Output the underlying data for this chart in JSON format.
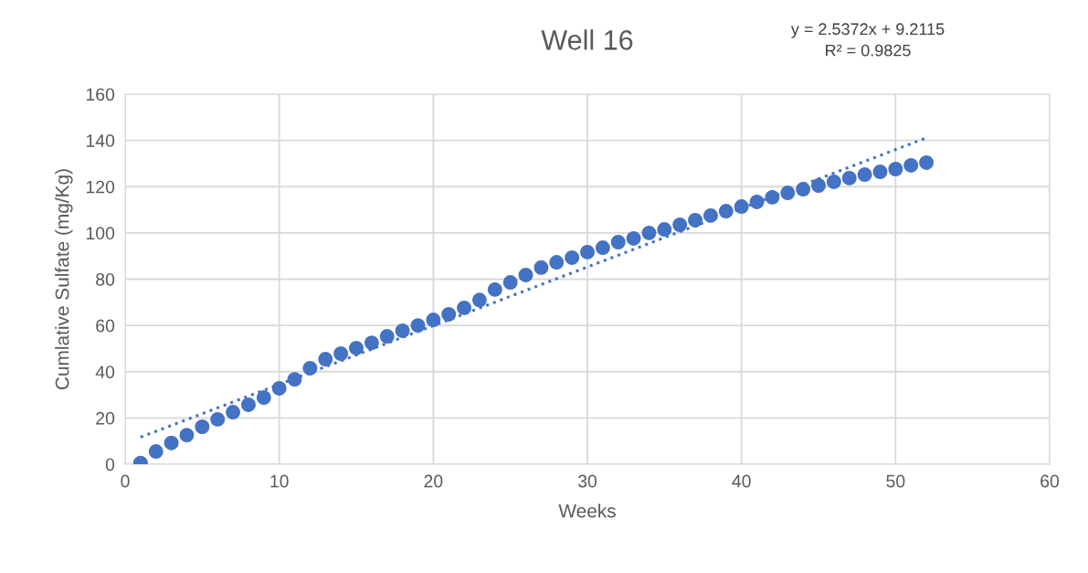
{
  "chart_data": {
    "type": "scatter",
    "title": "Well 16",
    "xlabel": "Weeks",
    "ylabel": "Cumlative Sulfate (mg/Kg)",
    "annotations": [
      "y = 2.5372x + 9.2115\nR² = 0.9825"
    ],
    "xlim": [
      0,
      60
    ],
    "xticks": [
      0,
      10,
      20,
      30,
      40,
      50,
      60
    ],
    "ylim": [
      0,
      160
    ],
    "yticks": [
      0,
      20,
      40,
      60,
      80,
      100,
      120,
      140,
      160
    ],
    "grid": true,
    "legend": false,
    "marker": "circle",
    "series": [
      {
        "color": "#4472c4",
        "x": [
          1,
          2,
          3,
          4,
          5,
          6,
          7,
          8,
          9,
          10,
          11,
          12,
          13,
          14,
          15,
          16,
          17,
          18,
          19,
          20,
          21,
          22,
          23,
          24,
          25,
          26,
          27,
          28,
          29,
          30,
          31,
          32,
          33,
          34,
          35,
          36,
          37,
          38,
          39,
          40,
          41,
          42,
          43,
          44,
          45,
          46,
          47,
          48,
          49,
          50,
          51,
          52
        ],
        "values": [
          0.5,
          5.5,
          9.2,
          12.6,
          16.2,
          19.4,
          22.5,
          25.7,
          28.8,
          32.8,
          36.7,
          41.5,
          45.4,
          47.8,
          50.2,
          52.5,
          55.3,
          57.7,
          60,
          62.4,
          64.8,
          67.6,
          71,
          75.5,
          78.6,
          81.8,
          85,
          87.3,
          89.3,
          91.7,
          93.6,
          96,
          97.6,
          100,
          101.5,
          103.5,
          105.5,
          107.5,
          109.4,
          111.4,
          113.4,
          115.4,
          117.3,
          118.9,
          120.5,
          122.1,
          123.7,
          125.2,
          126.4,
          127.6,
          129.2,
          130.4
        ]
      },
      {
        "type": "line",
        "color": "#4472c4",
        "line_style": "dotted",
        "marker": "none",
        "x": [
          1,
          52
        ],
        "values": [
          11.7,
          141.1
        ]
      }
    ]
  }
}
